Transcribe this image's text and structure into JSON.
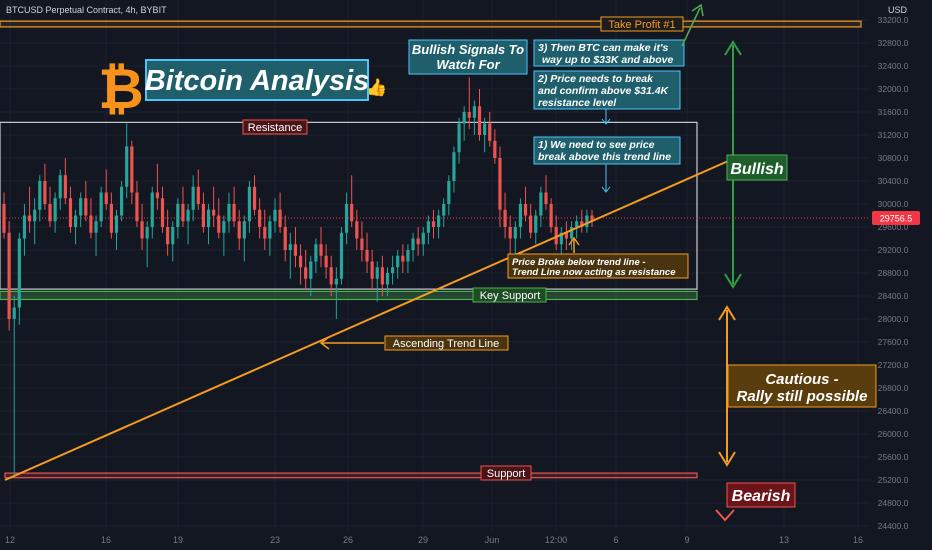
{
  "header": {
    "symbol": "BTCUSD Perpetual Contract, 4h, BYBIT"
  },
  "colors": {
    "bg": "#131722",
    "up": "#26a69a",
    "down": "#ef5350",
    "orange": "#f7931a",
    "trend": "#f59b1f",
    "teal": "#1f7a80",
    "green": "#1d6b2a",
    "red": "#b71c1c",
    "grid": "#1c2030",
    "axis": "#787b86"
  },
  "chart_data": {
    "type": "candlestick",
    "y_axis": {
      "unit": "USD",
      "ticks": [
        "33200.0",
        "32800.0",
        "32400.0",
        "32000.0",
        "31600.0",
        "31200.0",
        "30800.0",
        "30400.0",
        "30000.0",
        "29600.0",
        "29200.0",
        "28800.0",
        "28400.0",
        "28000.0",
        "27600.0",
        "27200.0",
        "26800.0",
        "26400.0",
        "26000.0",
        "25600.0",
        "25200.0",
        "24800.0",
        "24400.0"
      ]
    },
    "x_axis": {
      "ticks": [
        "12",
        "16",
        "19",
        "23",
        "26",
        "29",
        "Jun",
        "12:00",
        "6",
        "9",
        "13",
        "16"
      ]
    },
    "last_price": "29756.5",
    "levels": {
      "take_profit": [
        33180,
        33080
      ],
      "resistance_box": [
        31420,
        28520
      ],
      "key_support": [
        28480,
        28340
      ],
      "support": [
        25320,
        25240
      ]
    },
    "trend_line": {
      "from": [
        "12",
        25200
      ],
      "to": [
        "9",
        30800
      ]
    },
    "candles": [
      [
        30000,
        30200,
        29400,
        29500
      ],
      [
        29500,
        29700,
        27800,
        28000
      ],
      [
        28000,
        28400,
        25250,
        28200
      ],
      [
        28200,
        29500,
        27900,
        29400
      ],
      [
        29400,
        30000,
        29100,
        29800
      ],
      [
        29800,
        30300,
        29500,
        29700
      ],
      [
        29700,
        30100,
        29300,
        29900
      ],
      [
        29900,
        30500,
        29700,
        30400
      ],
      [
        30400,
        30700,
        29900,
        30000
      ],
      [
        30000,
        30300,
        29600,
        29700
      ],
      [
        29700,
        30200,
        29500,
        30100
      ],
      [
        30100,
        30600,
        29900,
        30500
      ],
      [
        30500,
        30800,
        30000,
        30100
      ],
      [
        30100,
        30300,
        29500,
        29600
      ],
      [
        29600,
        29900,
        29300,
        29800
      ],
      [
        29800,
        30200,
        29600,
        30100
      ],
      [
        30100,
        30400,
        29700,
        29800
      ],
      [
        29800,
        30100,
        29400,
        29500
      ],
      [
        29500,
        29800,
        29100,
        29700
      ],
      [
        29700,
        30300,
        29600,
        30200
      ],
      [
        30200,
        30600,
        29900,
        30000
      ],
      [
        30000,
        30200,
        29400,
        29500
      ],
      [
        29500,
        29900,
        29200,
        29800
      ],
      [
        29800,
        30400,
        29700,
        30300
      ],
      [
        30300,
        31400,
        30100,
        31000
      ],
      [
        31000,
        31100,
        30000,
        30200
      ],
      [
        30200,
        30400,
        29600,
        29700
      ],
      [
        29700,
        30000,
        29200,
        29400
      ],
      [
        29400,
        29700,
        28900,
        29600
      ],
      [
        29600,
        30300,
        29400,
        30200
      ],
      [
        30200,
        30700,
        29900,
        30100
      ],
      [
        30100,
        30300,
        29500,
        29600
      ],
      [
        29600,
        29900,
        29100,
        29300
      ],
      [
        29300,
        29700,
        29000,
        29600
      ],
      [
        29600,
        30100,
        29400,
        30000
      ],
      [
        30000,
        30300,
        29600,
        29700
      ],
      [
        29700,
        30000,
        29300,
        29900
      ],
      [
        29900,
        30500,
        29700,
        30300
      ],
      [
        30300,
        30600,
        29900,
        30000
      ],
      [
        30000,
        30200,
        29500,
        29600
      ],
      [
        29600,
        30000,
        29300,
        29900
      ],
      [
        29900,
        30300,
        29600,
        29800
      ],
      [
        29800,
        30100,
        29400,
        29500
      ],
      [
        29500,
        29800,
        29100,
        29700
      ],
      [
        29700,
        30200,
        29500,
        30000
      ],
      [
        30000,
        30300,
        29600,
        29700
      ],
      [
        29700,
        29900,
        29200,
        29400
      ],
      [
        29400,
        29800,
        29000,
        29700
      ],
      [
        29700,
        30400,
        29500,
        30300
      ],
      [
        30300,
        30500,
        29800,
        29900
      ],
      [
        29900,
        30100,
        29400,
        29600
      ],
      [
        29600,
        29900,
        29200,
        29400
      ],
      [
        29400,
        29800,
        29100,
        29700
      ],
      [
        29700,
        30100,
        29500,
        29900
      ],
      [
        29900,
        30200,
        29500,
        29600
      ],
      [
        29600,
        29800,
        29000,
        29200
      ],
      [
        29200,
        29500,
        28700,
        29300
      ],
      [
        29300,
        29600,
        28900,
        29100
      ],
      [
        29100,
        29300,
        28600,
        28900
      ],
      [
        28900,
        29200,
        28500,
        28700
      ],
      [
        28700,
        29100,
        28400,
        29000
      ],
      [
        29000,
        29400,
        28800,
        29300
      ],
      [
        29300,
        29600,
        28900,
        29100
      ],
      [
        29100,
        29300,
        28700,
        28900
      ],
      [
        28900,
        29100,
        28400,
        28600
      ],
      [
        28600,
        28900,
        28000,
        28700
      ],
      [
        28700,
        29600,
        28600,
        29500
      ],
      [
        29500,
        30200,
        29300,
        30000
      ],
      [
        30000,
        30500,
        29600,
        29700
      ],
      [
        29700,
        29900,
        29200,
        29400
      ],
      [
        29400,
        29700,
        29000,
        29200
      ],
      [
        29200,
        29500,
        28800,
        29000
      ],
      [
        29000,
        29200,
        28500,
        28700
      ],
      [
        28700,
        29000,
        28300,
        28900
      ],
      [
        28900,
        29100,
        28400,
        28600
      ],
      [
        28600,
        28900,
        28400,
        28800
      ],
      [
        28800,
        29100,
        28600,
        28900
      ],
      [
        28900,
        29200,
        28700,
        29100
      ],
      [
        29100,
        29300,
        28800,
        29000
      ],
      [
        29000,
        29300,
        28800,
        29200
      ],
      [
        29200,
        29500,
        29000,
        29400
      ],
      [
        29400,
        29600,
        29100,
        29300
      ],
      [
        29300,
        29600,
        29100,
        29500
      ],
      [
        29500,
        29800,
        29300,
        29700
      ],
      [
        29700,
        29900,
        29400,
        29600
      ],
      [
        29600,
        29900,
        29400,
        29800
      ],
      [
        29800,
        30100,
        29600,
        30000
      ],
      [
        30000,
        30500,
        29800,
        30400
      ],
      [
        30400,
        31000,
        30200,
        30900
      ],
      [
        30900,
        31500,
        30700,
        31400
      ],
      [
        31400,
        31700,
        31100,
        31600
      ],
      [
        31600,
        32200,
        31300,
        31500
      ],
      [
        31500,
        31800,
        31200,
        31700
      ],
      [
        31700,
        32000,
        31100,
        31200
      ],
      [
        31200,
        31500,
        30900,
        31400
      ],
      [
        31400,
        31600,
        31000,
        31100
      ],
      [
        31100,
        31300,
        30700,
        30800
      ],
      [
        30800,
        31000,
        29600,
        29900
      ],
      [
        29900,
        30200,
        29400,
        29600
      ],
      [
        29600,
        29800,
        29100,
        29400
      ],
      [
        29400,
        29700,
        29100,
        29600
      ],
      [
        29600,
        30100,
        29400,
        30000
      ],
      [
        30000,
        30300,
        29700,
        29800
      ],
      [
        29800,
        30000,
        29400,
        29500
      ],
      [
        29500,
        29900,
        29300,
        29800
      ],
      [
        29800,
        30300,
        29600,
        30200
      ],
      [
        30200,
        30500,
        29900,
        30000
      ],
      [
        30000,
        30100,
        29500,
        29600
      ],
      [
        29600,
        29800,
        29200,
        29300
      ],
      [
        29300,
        29600,
        29100,
        29500
      ],
      [
        29500,
        29700,
        29200,
        29400
      ],
      [
        29400,
        29700,
        29200,
        29600
      ],
      [
        29600,
        29800,
        29400,
        29700
      ],
      [
        29700,
        29900,
        29500,
        29600
      ],
      [
        29600,
        29900,
        29500,
        29800
      ],
      [
        29800,
        29900,
        29600,
        29700
      ]
    ]
  },
  "annotations": {
    "title": "Bitcoin Analysis",
    "thumb": "👍",
    "take_profit": "Take Profit #1",
    "bullish_signals": [
      "Bullish Signals To",
      "Watch For"
    ],
    "step3": [
      "3) Then BTC can make it's",
      "way up to $33K and above"
    ],
    "step2": [
      "2) Price needs to break",
      "and confirm above $31.4K",
      "resistance level"
    ],
    "step1": [
      "1) We need to see price",
      "break above this trend line"
    ],
    "resistance": "Resistance",
    "price_broke": [
      "Price Broke below trend line -",
      "Trend Line now acting as resistance"
    ],
    "key_support": "Key Support",
    "ascending_trend": "Ascending Trend Line",
    "support": "Support",
    "bullish": "Bullish",
    "cautious": [
      "Cautious -",
      "Rally still possible"
    ],
    "bearish": "Bearish"
  }
}
